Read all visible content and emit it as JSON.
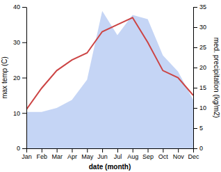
{
  "chart_data": {
    "type": "line",
    "categories": [
      "Jan",
      "Feb",
      "Mar",
      "Apr",
      "May",
      "Jun",
      "Jul",
      "Aug",
      "Sep",
      "Oct",
      "Nov",
      "Dec"
    ],
    "series": [
      {
        "type": "area",
        "axis": "y2",
        "color": "#c5d5f5",
        "values": [
          9,
          9,
          10,
          12,
          17,
          34,
          28,
          33,
          32,
          23,
          19,
          12
        ]
      },
      {
        "type": "line",
        "color": "#cc4444",
        "values": [
          11,
          17,
          22,
          25,
          27,
          33,
          35,
          37,
          30,
          22,
          20,
          15
        ]
      }
    ],
    "xlabel": "date (month)",
    "ylabel": "max temp (C)",
    "y2label": "med. precipitation (kg/m2)",
    "ylim": [
      0,
      40
    ],
    "yticks": [
      0,
      10,
      20,
      30,
      40
    ],
    "y2lim": [
      0,
      35
    ],
    "y2ticks": [
      0,
      5,
      10,
      15,
      20,
      25,
      30,
      35
    ],
    "grid": false
  }
}
